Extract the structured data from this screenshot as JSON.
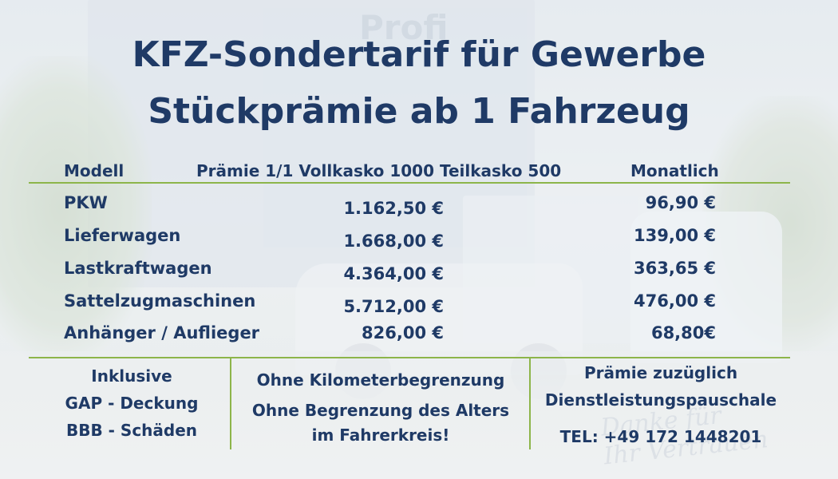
{
  "title": {
    "line1": "KFZ-Sondertarif für Gewerbe",
    "line2": "Stückprämie ab 1 Fahrzeug"
  },
  "table": {
    "headers": {
      "model": "Modell",
      "premium": "Prämie 1/1 Vollkasko 1000 Teilkasko 500",
      "monthly": "Monatlich"
    },
    "rows": [
      {
        "model": "PKW",
        "premium": "1.162,50 €",
        "monthly": "96,90 €"
      },
      {
        "model": "Lieferwagen",
        "premium": "1.668,00 €",
        "monthly": "139,00 €"
      },
      {
        "model": "Lastkraftwagen",
        "premium": "4.364,00 €",
        "monthly": "363,65 €"
      },
      {
        "model": "Sattelzugmaschinen",
        "premium": "5.712,00 €",
        "monthly": "476,00 €"
      },
      {
        "model": "Anhänger / Auflieger",
        "premium": "826,00 €",
        "monthly": "68,80€"
      }
    ]
  },
  "footer": {
    "left": [
      "Inklusive",
      "GAP - Deckung",
      "BBB - Schäden"
    ],
    "middle": [
      "Ohne Kilometerbegrenzung",
      "Ohne Begrenzung des Alters",
      "im Fahrerkreis!"
    ],
    "right": [
      "Prämie zuzüglich",
      "Dienstleistungspauschale",
      "TEL: +49 172 1448201"
    ]
  },
  "colors": {
    "text": "#1f3a66",
    "rule": "#8db54a"
  },
  "background": {
    "sign_text": "Profi",
    "script_text": [
      "Danke für",
      "Ihr Vertrauen"
    ]
  }
}
